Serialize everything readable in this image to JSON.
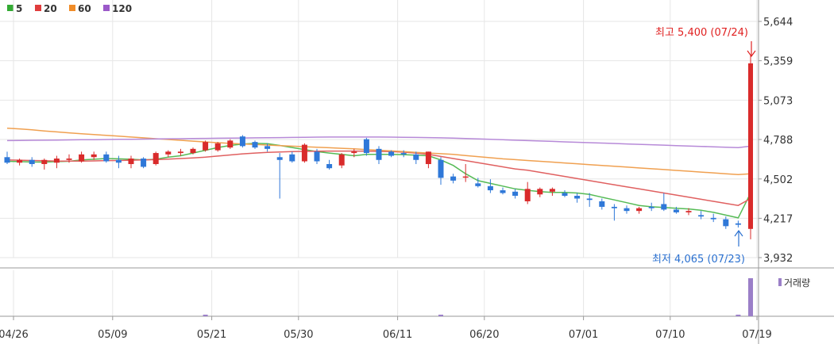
{
  "legend": [
    {
      "label": "5",
      "color": "#33aa33"
    },
    {
      "label": "20",
      "color": "#e03c3c"
    },
    {
      "label": "60",
      "color": "#f08c28"
    },
    {
      "label": "120",
      "color": "#9b59c9"
    }
  ],
  "volume_label": "거래량",
  "annotations": {
    "high": {
      "text": "최고 5,400 (07/24)",
      "value": 5400,
      "color": "#e02020"
    },
    "low": {
      "text": "최저 4,065 (07/23)",
      "value": 4065,
      "color": "#2a70d0"
    }
  },
  "chart_data": {
    "type": "candlestick",
    "up_color": "#d92b2b",
    "down_color": "#2f78d8",
    "ylim": [
      3932,
      5644
    ],
    "y_ticks": [
      "5,644",
      "5,359",
      "5,073",
      "4,788",
      "4,502",
      "4,217",
      "3,932"
    ],
    "y_tick_values": [
      5644,
      5359,
      5073,
      4788,
      4502,
      4217,
      3932
    ],
    "x_ticks": [
      {
        "label": "04/26",
        "index": 0
      },
      {
        "label": "05/09",
        "index": 8
      },
      {
        "label": "05/21",
        "index": 16
      },
      {
        "label": "05/30",
        "index": 23
      },
      {
        "label": "06/11",
        "index": 31
      },
      {
        "label": "06/20",
        "index": 38
      },
      {
        "label": "07/01",
        "index": 46
      },
      {
        "label": "07/10",
        "index": 53
      },
      {
        "label": "07/19",
        "index": 60
      }
    ],
    "candles": [
      [
        4660,
        4700,
        4610,
        4620
      ],
      [
        4620,
        4650,
        4600,
        4640
      ],
      [
        4640,
        4660,
        4590,
        4610
      ],
      [
        4610,
        4650,
        4570,
        4640
      ],
      [
        4620,
        4670,
        4580,
        4650
      ],
      [
        4640,
        4680,
        4620,
        4650
      ],
      [
        4630,
        4700,
        4620,
        4680
      ],
      [
        4660,
        4700,
        4640,
        4680
      ],
      [
        4680,
        4700,
        4620,
        4630
      ],
      [
        4640,
        4670,
        4580,
        4620
      ],
      [
        4610,
        4670,
        4580,
        4650
      ],
      [
        4650,
        4660,
        4580,
        4590
      ],
      [
        4610,
        4700,
        4600,
        4690
      ],
      [
        4680,
        4710,
        4660,
        4700
      ],
      [
        4690,
        4720,
        4670,
        4700
      ],
      [
        4690,
        4730,
        4680,
        4720
      ],
      [
        4710,
        4780,
        4700,
        4770
      ],
      [
        4710,
        4770,
        4700,
        4760
      ],
      [
        4730,
        4790,
        4720,
        4780
      ],
      [
        4810,
        4820,
        4730,
        4740
      ],
      [
        4770,
        4780,
        4720,
        4730
      ],
      [
        4740,
        4760,
        4700,
        4720
      ],
      [
        4660,
        4690,
        4360,
        4640
      ],
      [
        4680,
        4700,
        4620,
        4630
      ],
      [
        4630,
        4760,
        4620,
        4750
      ],
      [
        4700,
        4720,
        4610,
        4630
      ],
      [
        4610,
        4640,
        4570,
        4580
      ],
      [
        4600,
        4690,
        4580,
        4680
      ],
      [
        4690,
        4720,
        4660,
        4700
      ],
      [
        4790,
        4800,
        4670,
        4690
      ],
      [
        4720,
        4740,
        4610,
        4640
      ],
      [
        4700,
        4710,
        4660,
        4670
      ],
      [
        4690,
        4710,
        4660,
        4680
      ],
      [
        4680,
        4700,
        4610,
        4640
      ],
      [
        4610,
        4700,
        4580,
        4700
      ],
      [
        4640,
        4660,
        4460,
        4510
      ],
      [
        4520,
        4540,
        4470,
        4490
      ],
      [
        4520,
        4610,
        4480,
        4520
      ],
      [
        4470,
        4510,
        4440,
        4450
      ],
      [
        4450,
        4500,
        4400,
        4420
      ],
      [
        4420,
        4440,
        4390,
        4400
      ],
      [
        4410,
        4430,
        4360,
        4380
      ],
      [
        4340,
        4480,
        4320,
        4430
      ],
      [
        4390,
        4440,
        4370,
        4430
      ],
      [
        4410,
        4440,
        4380,
        4430
      ],
      [
        4400,
        4420,
        4370,
        4380
      ],
      [
        4380,
        4400,
        4330,
        4360
      ],
      [
        4360,
        4400,
        4300,
        4350
      ],
      [
        4340,
        4360,
        4280,
        4300
      ],
      [
        4300,
        4320,
        4200,
        4290
      ],
      [
        4290,
        4310,
        4250,
        4270
      ],
      [
        4270,
        4300,
        4250,
        4290
      ],
      [
        4300,
        4330,
        4270,
        4290
      ],
      [
        4320,
        4400,
        4270,
        4280
      ],
      [
        4280,
        4300,
        4250,
        4260
      ],
      [
        4260,
        4290,
        4240,
        4270
      ],
      [
        4240,
        4270,
        4210,
        4230
      ],
      [
        4220,
        4250,
        4190,
        4210
      ],
      [
        4210,
        4230,
        4140,
        4160
      ],
      [
        4180,
        4200,
        4150,
        4170
      ],
      [
        4140,
        5400,
        4065,
        5340
      ]
    ],
    "ma_lines": [
      {
        "name": "5",
        "color": "#55bb55",
        "values": [
          4630,
          4628,
          4625,
          4624,
          4628,
          4630,
          4640,
          4645,
          4650,
          4648,
          4645,
          4640,
          4645,
          4660,
          4670,
          4690,
          4710,
          4730,
          4745,
          4755,
          4760,
          4758,
          4745,
          4730,
          4715,
          4700,
          4690,
          4680,
          4670,
          4680,
          4680,
          4680,
          4678,
          4675,
          4670,
          4640,
          4600,
          4540,
          4490,
          4470,
          4450,
          4430,
          4420,
          4410,
          4405,
          4405,
          4400,
          4390,
          4370,
          4350,
          4330,
          4310,
          4300,
          4295,
          4290,
          4285,
          4275,
          4260,
          4240,
          4220,
          4400
        ]
      },
      {
        "name": "20",
        "color": "#e06060",
        "values": [
          4640,
          4638,
          4636,
          4634,
          4632,
          4632,
          4632,
          4633,
          4635,
          4636,
          4638,
          4640,
          4642,
          4646,
          4650,
          4655,
          4660,
          4668,
          4676,
          4684,
          4690,
          4695,
          4698,
          4700,
          4702,
          4703,
          4704,
          4704,
          4704,
          4703,
          4702,
          4700,
          4696,
          4690,
          4680,
          4665,
          4650,
          4635,
          4620,
          4605,
          4590,
          4575,
          4565,
          4550,
          4535,
          4520,
          4505,
          4490,
          4475,
          4460,
          4445,
          4430,
          4415,
          4400,
          4385,
          4370,
          4355,
          4340,
          4325,
          4310,
          4360
        ]
      },
      {
        "name": "60",
        "color": "#f0a050",
        "values": [
          4870,
          4865,
          4858,
          4850,
          4843,
          4836,
          4830,
          4824,
          4818,
          4812,
          4806,
          4800,
          4794,
          4788,
          4782,
          4776,
          4770,
          4765,
          4760,
          4756,
          4752,
          4748,
          4744,
          4740,
          4736,
          4732,
          4728,
          4724,
          4720,
          4715,
          4710,
          4705,
          4700,
          4695,
          4690,
          4685,
          4680,
          4672,
          4664,
          4656,
          4648,
          4642,
          4636,
          4630,
          4624,
          4618,
          4612,
          4606,
          4600,
          4594,
          4588,
          4582,
          4576,
          4570,
          4564,
          4558,
          4552,
          4546,
          4540,
          4534,
          4540
        ]
      },
      {
        "name": "120",
        "color": "#b78ad8",
        "values": [
          4780,
          4781,
          4782,
          4783,
          4784,
          4785,
          4786,
          4787,
          4788,
          4789,
          4790,
          4791,
          4792,
          4793,
          4794,
          4795,
          4796,
          4797,
          4798,
          4799,
          4800,
          4801,
          4802,
          4803,
          4804,
          4805,
          4806,
          4806,
          4806,
          4806,
          4806,
          4805,
          4804,
          4803,
          4802,
          4800,
          4798,
          4795,
          4792,
          4789,
          4786,
          4783,
          4780,
          4777,
          4774,
          4771,
          4768,
          4765,
          4762,
          4759,
          4756,
          4753,
          4750,
          4747,
          4744,
          4741,
          4738,
          4735,
          4732,
          4729,
          4740
        ]
      }
    ],
    "volume": [
      0,
      0,
      0,
      0,
      0,
      0,
      0,
      0,
      0,
      0,
      0,
      0,
      0,
      0,
      0,
      0,
      2,
      0,
      0,
      0,
      0,
      0,
      0,
      0,
      0,
      0,
      0,
      0,
      0,
      0,
      0,
      0,
      0,
      0,
      0,
      1,
      0,
      0,
      0,
      0,
      0,
      0,
      0,
      0,
      0,
      0,
      0,
      0,
      0,
      0,
      0,
      0,
      0,
      0,
      0,
      0,
      0,
      0,
      0,
      0.5,
      100
    ],
    "volume_color": "#9b7fc8"
  }
}
